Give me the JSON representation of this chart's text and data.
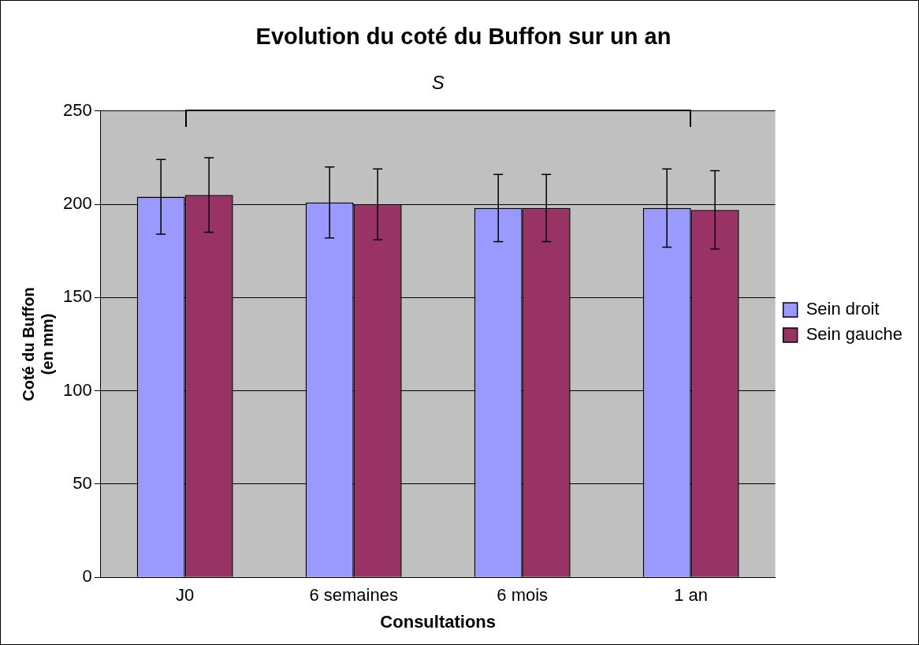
{
  "chart_data": {
    "type": "bar",
    "title": "Evolution du coté du Buffon sur un an",
    "xlabel": "Consultations",
    "ylabel": "Coté du Buffon\n(en mm)",
    "categories": [
      "J0",
      "6 semaines",
      "6 mois",
      "1 an"
    ],
    "series": [
      {
        "name": "Sein droit",
        "color": "#9999ff",
        "values": [
          204,
          201,
          198,
          198
        ],
        "errors": [
          20,
          19,
          18,
          21
        ]
      },
      {
        "name": "Sein gauche",
        "color": "#993366",
        "values": [
          205,
          200,
          198,
          197
        ],
        "errors": [
          20,
          19,
          18,
          21
        ]
      }
    ],
    "ylim": [
      0,
      250
    ],
    "yticks": [
      0,
      50,
      100,
      150,
      200,
      250
    ],
    "grid": "y",
    "legend": "right",
    "annotations": [
      "S"
    ]
  }
}
